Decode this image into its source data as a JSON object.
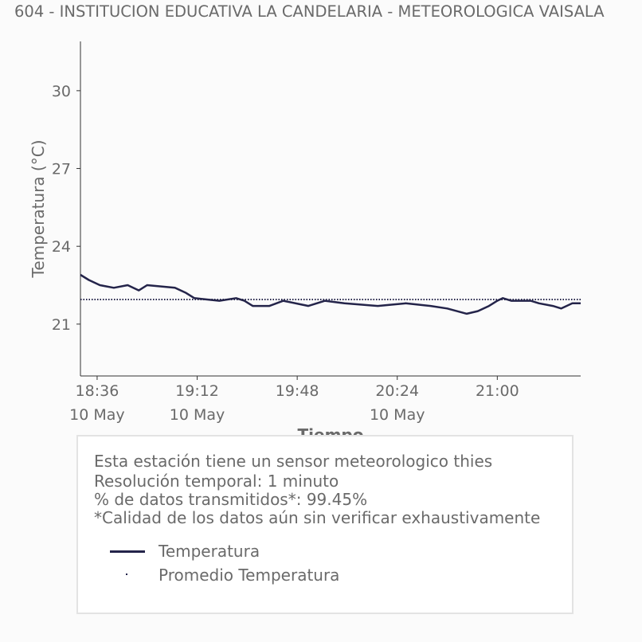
{
  "chart_data": {
    "type": "line",
    "title": "604 - INSTITUCION EDUCATIVA LA CANDELARIA - METEOROLOGICA VAISALA",
    "xlabel": "Tiempo",
    "ylabel": "Temperatura (°C)",
    "x_ticks": [
      {
        "time": "18:36",
        "date": "10 May"
      },
      {
        "time": "19:12",
        "date": "10 May"
      },
      {
        "time": "19:48",
        "date": ""
      },
      {
        "time": "20:24",
        "date": "10 May"
      },
      {
        "time": "21:00",
        "date": ""
      }
    ],
    "x_tick_minutes": [
      "18:36",
      "19:12",
      "19:48",
      "20:24",
      "21:00"
    ],
    "xlim": [
      "18:30",
      "21:30"
    ],
    "y_ticks": [
      21,
      24,
      27,
      30
    ],
    "ylim": [
      19.0,
      31.9
    ],
    "series": [
      {
        "name": "Temperatura",
        "style": "solid",
        "color": "#24244a",
        "points": [
          [
            "18:30",
            22.9
          ],
          [
            "18:33",
            22.7
          ],
          [
            "18:37",
            22.5
          ],
          [
            "18:42",
            22.4
          ],
          [
            "18:47",
            22.5
          ],
          [
            "18:51",
            22.3
          ],
          [
            "18:54",
            22.5
          ],
          [
            "19:04",
            22.4
          ],
          [
            "19:08",
            22.2
          ],
          [
            "19:11",
            22.0
          ],
          [
            "19:20",
            21.9
          ],
          [
            "19:26",
            22.0
          ],
          [
            "19:29",
            21.9
          ],
          [
            "19:32",
            21.7
          ],
          [
            "19:38",
            21.7
          ],
          [
            "19:43",
            21.9
          ],
          [
            "19:52",
            21.7
          ],
          [
            "19:58",
            21.9
          ],
          [
            "20:05",
            21.8
          ],
          [
            "20:17",
            21.7
          ],
          [
            "20:27",
            21.8
          ],
          [
            "20:36",
            21.7
          ],
          [
            "20:42",
            21.6
          ],
          [
            "20:49",
            21.4
          ],
          [
            "20:53",
            21.5
          ],
          [
            "20:57",
            21.7
          ],
          [
            "21:00",
            21.9
          ],
          [
            "21:02",
            22.0
          ],
          [
            "21:05",
            21.9
          ],
          [
            "21:12",
            21.9
          ],
          [
            "21:15",
            21.8
          ],
          [
            "21:20",
            21.7
          ],
          [
            "21:23",
            21.6
          ],
          [
            "21:27",
            21.8
          ],
          [
            "21:30",
            21.8
          ]
        ]
      },
      {
        "name": "Promedio Temperatura",
        "style": "dotted",
        "color": "#24244a",
        "value": 21.95
      }
    ],
    "grid": false,
    "legend": "bottom (in info box)"
  },
  "info": {
    "line1": "Esta estación tiene un sensor meteorologico thies",
    "line2": "Resolución temporal: 1 minuto",
    "line3": "% de datos transmitidos*: 99.45%",
    "line4": "*Calidad de los datos aún sin verificar exhaustivamente"
  },
  "legend": {
    "series1": "Temperatura",
    "series2": "Promedio Temperatura"
  },
  "colors": {
    "line": "#24244a",
    "text": "#666666",
    "axis": "#333333",
    "background": "#fbfbfb"
  }
}
